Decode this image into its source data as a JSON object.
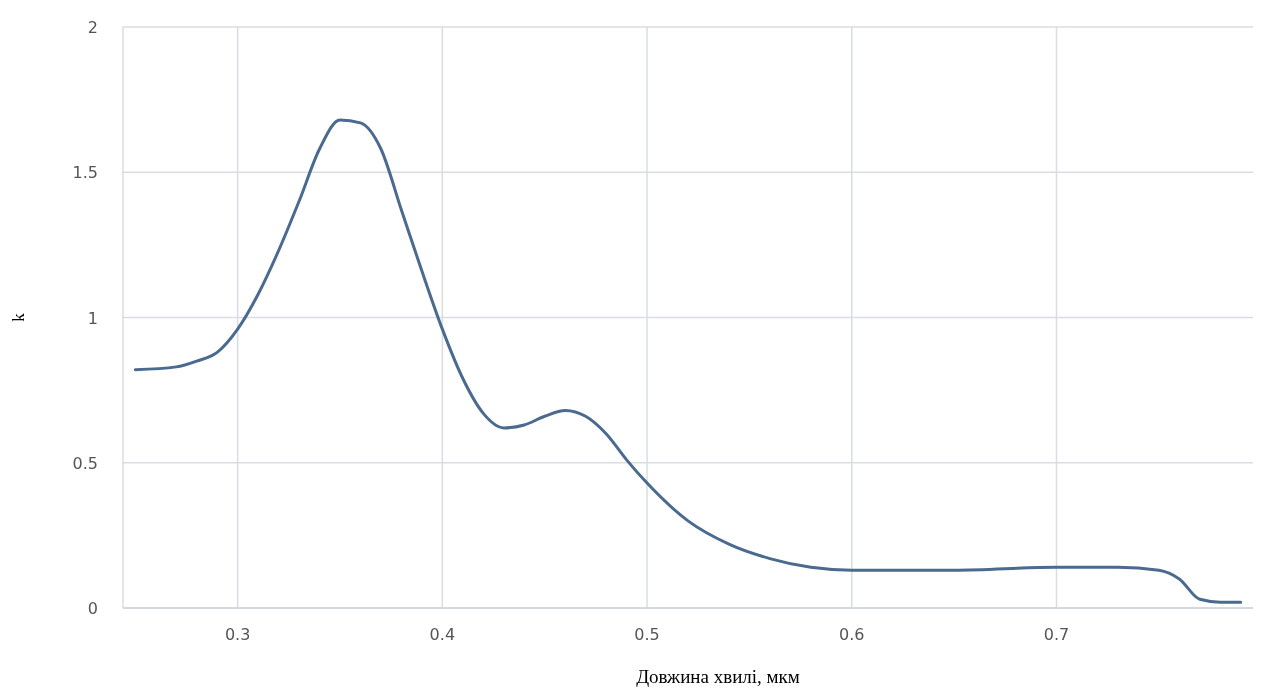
{
  "chart_data": {
    "type": "line",
    "xlabel": "Довжина хвилі, мкм",
    "ylabel": "k",
    "xlim": [
      0.244,
      0.796
    ],
    "xticks": [
      0.3,
      0.4,
      0.5,
      0.6,
      0.7
    ],
    "ylim": [
      0,
      2
    ],
    "yticks": [
      0,
      0.5,
      1,
      1.5,
      2
    ],
    "grid": true,
    "marker": "none",
    "line_style": "solid",
    "series": [
      {
        "color": "#4a6a8f",
        "x": [
          0.25,
          0.27,
          0.28,
          0.29,
          0.3,
          0.31,
          0.32,
          0.33,
          0.34,
          0.35,
          0.36,
          0.37,
          0.38,
          0.39,
          0.4,
          0.41,
          0.42,
          0.43,
          0.44,
          0.45,
          0.46,
          0.47,
          0.48,
          0.49,
          0.5,
          0.52,
          0.54,
          0.56,
          0.58,
          0.6,
          0.65,
          0.7,
          0.73,
          0.75,
          0.76,
          0.77,
          0.78,
          0.79
        ],
        "values": [
          0.82,
          0.83,
          0.85,
          0.88,
          0.96,
          1.08,
          1.23,
          1.4,
          1.58,
          1.68,
          1.67,
          1.58,
          1.37,
          1.16,
          0.96,
          0.79,
          0.67,
          0.62,
          0.63,
          0.66,
          0.68,
          0.66,
          0.6,
          0.51,
          0.43,
          0.3,
          0.22,
          0.17,
          0.14,
          0.13,
          0.13,
          0.14,
          0.14,
          0.13,
          0.1,
          0.03,
          0.02,
          0.02
        ]
      }
    ]
  }
}
